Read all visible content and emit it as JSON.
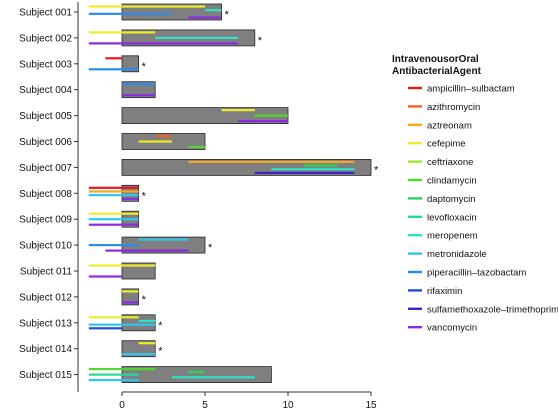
{
  "chart_data": {
    "type": "timeline",
    "xlim": [
      -2.2,
      16
    ],
    "x_ticks": [
      "0",
      "5",
      "10",
      "15"
    ],
    "legend": {
      "title_line1": "IntravenousorOral",
      "title_line2": "AntibacterialAgent",
      "placement": "right",
      "entries": [
        {
          "name": "ampicillin–sulbactam",
          "color": "#e8191c"
        },
        {
          "name": "azithromycin",
          "color": "#f0641e"
        },
        {
          "name": "aztreonam",
          "color": "#f5a623"
        },
        {
          "name": "cefepime",
          "color": "#ecec2a"
        },
        {
          "name": "ceftriaxone",
          "color": "#a6e22e"
        },
        {
          "name": "clindamycin",
          "color": "#55d532"
        },
        {
          "name": "daptomycin",
          "color": "#2ad45c"
        },
        {
          "name": "levofloxacin",
          "color": "#26d99a"
        },
        {
          "name": "meropenem",
          "color": "#2fe3c8"
        },
        {
          "name": "metronidazole",
          "color": "#2ec6ec"
        },
        {
          "name": "piperacillin–tazobactam",
          "color": "#2a8de8"
        },
        {
          "name": "rifaximin",
          "color": "#1f4fd8"
        },
        {
          "name": "sulfamethoxazole–trimethoprim",
          "color": "#4422c8"
        },
        {
          "name": "vancomycin",
          "color": "#8a2be2"
        }
      ]
    },
    "subjects": [
      {
        "label": "Subject 001",
        "box": [
          0,
          6
        ],
        "star": true,
        "segments": [
          {
            "agent": "cefepime",
            "start": -2,
            "end": 5
          },
          {
            "agent": "meropenem",
            "start": 5,
            "end": 6
          },
          {
            "agent": "piperacillin–tazobactam",
            "start": -2,
            "end": 3
          },
          {
            "agent": "vancomycin",
            "start": 4,
            "end": 6
          }
        ]
      },
      {
        "label": "Subject 002",
        "box": [
          0,
          8
        ],
        "star": true,
        "segments": [
          {
            "agent": "cefepime",
            "start": -2,
            "end": 2
          },
          {
            "agent": "meropenem",
            "start": 2,
            "end": 7
          },
          {
            "agent": "vancomycin",
            "start": -2,
            "end": 7
          }
        ]
      },
      {
        "label": "Subject 003",
        "box": [
          0,
          1
        ],
        "star": true,
        "segments": [
          {
            "agent": "ampicillin–sulbactam",
            "start": -1,
            "end": 0
          },
          {
            "agent": "piperacillin–tazobactam",
            "start": -2,
            "end": 1
          }
        ]
      },
      {
        "label": "Subject 004",
        "box": [
          0,
          2
        ],
        "star": false,
        "segments": [
          {
            "agent": "piperacillin–tazobactam",
            "start": 0,
            "end": 2
          },
          {
            "agent": "vancomycin",
            "start": 0,
            "end": 2
          }
        ]
      },
      {
        "label": "Subject 005",
        "box": [
          0,
          10
        ],
        "star": false,
        "segments": [
          {
            "agent": "cefepime",
            "start": 6,
            "end": 8
          },
          {
            "agent": "clindamycin",
            "start": 8,
            "end": 10
          },
          {
            "agent": "vancomycin",
            "start": 7,
            "end": 10
          }
        ]
      },
      {
        "label": "Subject 006",
        "box": [
          0,
          5
        ],
        "star": false,
        "segments": [
          {
            "agent": "azithromycin",
            "start": 2,
            "end": 3
          },
          {
            "agent": "cefepime",
            "start": 1,
            "end": 3
          },
          {
            "agent": "clindamycin",
            "start": 4,
            "end": 5
          }
        ]
      },
      {
        "label": "Subject 007",
        "box": [
          0,
          15
        ],
        "star": true,
        "segments": [
          {
            "agent": "aztreonam",
            "start": 4,
            "end": 14
          },
          {
            "agent": "daptomycin",
            "start": 11,
            "end": 13
          },
          {
            "agent": "meropenem",
            "start": 9,
            "end": 14
          },
          {
            "agent": "sulfamethoxazole–trimethoprim",
            "start": 8,
            "end": 14
          }
        ]
      },
      {
        "label": "Subject 008",
        "box": [
          0,
          1
        ],
        "star": true,
        "segments": [
          {
            "agent": "ampicillin–sulbactam",
            "start": -2,
            "end": 1
          },
          {
            "agent": "aztreonam",
            "start": -2,
            "end": 1
          },
          {
            "agent": "metronidazole",
            "start": -2,
            "end": 1
          },
          {
            "agent": "vancomycin",
            "start": 0,
            "end": 1
          }
        ]
      },
      {
        "label": "Subject 009",
        "box": [
          0,
          1
        ],
        "star": false,
        "segments": [
          {
            "agent": "cefepime",
            "start": -2,
            "end": 1
          },
          {
            "agent": "metronidazole",
            "start": -2,
            "end": 1
          },
          {
            "agent": "vancomycin",
            "start": -2,
            "end": 1
          }
        ]
      },
      {
        "label": "Subject 010",
        "box": [
          0,
          5
        ],
        "star": true,
        "segments": [
          {
            "agent": "metronidazole",
            "start": 1,
            "end": 4
          },
          {
            "agent": "piperacillin–tazobactam",
            "start": -2,
            "end": 1
          },
          {
            "agent": "vancomycin",
            "start": -1,
            "end": 4
          }
        ]
      },
      {
        "label": "Subject 011",
        "box": [
          0,
          2
        ],
        "star": false,
        "segments": [
          {
            "agent": "cefepime",
            "start": -2,
            "end": 2
          },
          {
            "agent": "vancomycin",
            "start": -2,
            "end": 0
          }
        ]
      },
      {
        "label": "Subject 012",
        "box": [
          0,
          1
        ],
        "star": true,
        "segments": [
          {
            "agent": "cefepime",
            "start": 0,
            "end": 1
          },
          {
            "agent": "vancomycin",
            "start": 0,
            "end": 1
          }
        ]
      },
      {
        "label": "Subject 013",
        "box": [
          0,
          2
        ],
        "star": true,
        "segments": [
          {
            "agent": "cefepime",
            "start": -2,
            "end": 1
          },
          {
            "agent": "meropenem",
            "start": 1,
            "end": 2
          },
          {
            "agent": "metronidazole",
            "start": -2,
            "end": 2
          },
          {
            "agent": "rifaximin",
            "start": -2,
            "end": 0
          }
        ]
      },
      {
        "label": "Subject 014",
        "box": [
          0,
          2
        ],
        "star": true,
        "segments": [
          {
            "agent": "cefepime",
            "start": 1,
            "end": 2
          },
          {
            "agent": "metronidazole",
            "start": 0,
            "end": 2
          }
        ]
      },
      {
        "label": "Subject 015",
        "box": [
          0,
          9
        ],
        "star": false,
        "segments": [
          {
            "agent": "clindamycin",
            "start": -2,
            "end": 2
          },
          {
            "agent": "daptomycin",
            "start": 4,
            "end": 5
          },
          {
            "agent": "levofloxacin",
            "start": -2,
            "end": 1
          },
          {
            "agent": "meropenem",
            "start": 3,
            "end": 8
          },
          {
            "agent": "metronidazole",
            "start": -2,
            "end": 1
          }
        ]
      }
    ]
  }
}
